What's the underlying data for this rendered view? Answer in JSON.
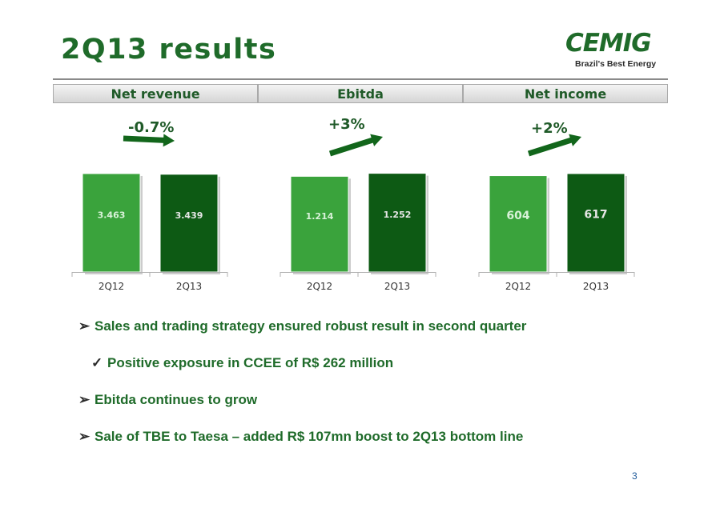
{
  "slide": {
    "title": "2Q13 results",
    "page_number": "3"
  },
  "logo": {
    "name": "CEMIG",
    "tagline": "Brazil's Best Energy",
    "color": "#1f6b2a"
  },
  "colors": {
    "bar_light": "#3aa33c",
    "bar_dark": "#0d5a14",
    "arrow": "#12661b",
    "heading": "#1f6b2a"
  },
  "headers": [
    "Net revenue",
    "Ebitda",
    "Net income"
  ],
  "chart_data": [
    {
      "type": "bar",
      "title": "Net revenue",
      "change_label": "-0.7%",
      "categories": [
        "2Q12",
        "2Q13"
      ],
      "values": [
        3.463,
        3.439
      ],
      "value_labels": [
        "3.463",
        "3.439"
      ],
      "ylim": [
        0,
        3.8
      ]
    },
    {
      "type": "bar",
      "title": "Ebitda",
      "change_label": "+3%",
      "categories": [
        "2Q12",
        "2Q13"
      ],
      "values": [
        1.214,
        1.252
      ],
      "value_labels": [
        "1.214",
        "1.252"
      ],
      "ylim": [
        0,
        1.37
      ]
    },
    {
      "type": "bar",
      "title": "Net income",
      "change_label": "+2%",
      "categories": [
        "2Q12",
        "2Q13"
      ],
      "values": [
        604,
        617
      ],
      "value_labels": [
        "604",
        "617"
      ],
      "ylim": [
        0,
        677
      ]
    }
  ],
  "bullets": [
    {
      "marker": "➢",
      "text": "Sales and trading strategy ensured robust result in second quarter",
      "level": 1
    },
    {
      "marker": "✓",
      "text": "Positive exposure in CCEE of R$ 262 million",
      "level": 2
    },
    {
      "marker": "➢",
      "text": "Ebitda continues to grow",
      "level": 1
    },
    {
      "marker": "➢",
      "text": "Sale of TBE to Taesa – added R$ 107mn boost to 2Q13 bottom line",
      "level": 1
    }
  ]
}
